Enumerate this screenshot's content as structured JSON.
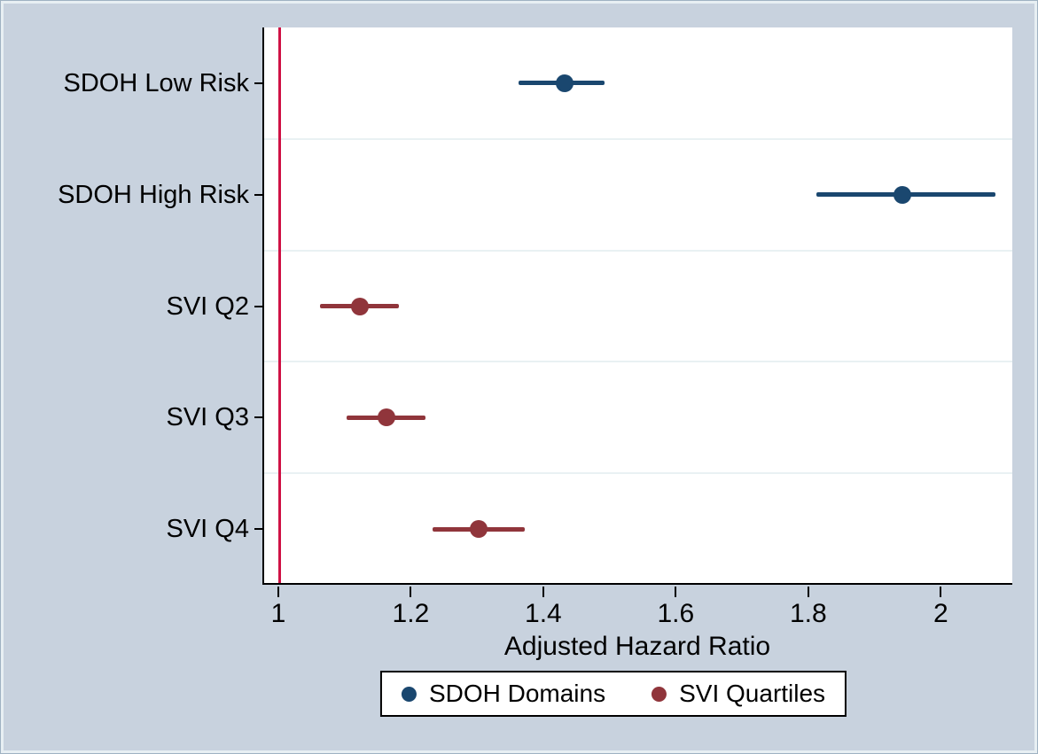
{
  "figure": {
    "bg": "#c8d2de",
    "border_light": "#e7eff3",
    "plot_bg": "#ffffff",
    "grid_color": "#e9f1f3",
    "axis_color": "#000000"
  },
  "chart_data": {
    "type": "scatter",
    "subtype": "forest-plot-dot-with-ci",
    "title": "",
    "xlabel": "Adjusted Hazard Ratio",
    "ylabel": "",
    "xlim": [
      0.976,
      2.108
    ],
    "xticks": [
      1,
      1.2,
      1.4,
      1.6,
      1.8,
      2
    ],
    "xtick_labels": [
      "1",
      "1.2",
      "1.4",
      "1.6",
      "1.8",
      "2"
    ],
    "refline_x": 1,
    "refline_color": "#cf1144",
    "grid": "horizontal-between-rows",
    "legend_position": "bottom-center",
    "categories": [
      "SDOH Low Risk",
      "SDOH High Risk",
      "SVI Q2",
      "SVI Q3",
      "SVI Q4"
    ],
    "points": [
      {
        "label": "SDOH Low Risk",
        "hr": 1.43,
        "ci_low": 1.36,
        "ci_high": 1.49,
        "series": "SDOH Domains"
      },
      {
        "label": "SDOH High Risk",
        "hr": 1.94,
        "ci_low": 1.81,
        "ci_high": 2.08,
        "series": "SDOH Domains"
      },
      {
        "label": "SVI Q2",
        "hr": 1.12,
        "ci_low": 1.06,
        "ci_high": 1.18,
        "series": "SVI Quartiles"
      },
      {
        "label": "SVI Q3",
        "hr": 1.16,
        "ci_low": 1.1,
        "ci_high": 1.22,
        "series": "SVI Quartiles"
      },
      {
        "label": "SVI Q4",
        "hr": 1.3,
        "ci_low": 1.23,
        "ci_high": 1.37,
        "series": "SVI Quartiles"
      }
    ],
    "series": [
      {
        "name": "SDOH Domains",
        "color": "#1a476f"
      },
      {
        "name": "SVI Quartiles",
        "color": "#90353b"
      }
    ]
  }
}
